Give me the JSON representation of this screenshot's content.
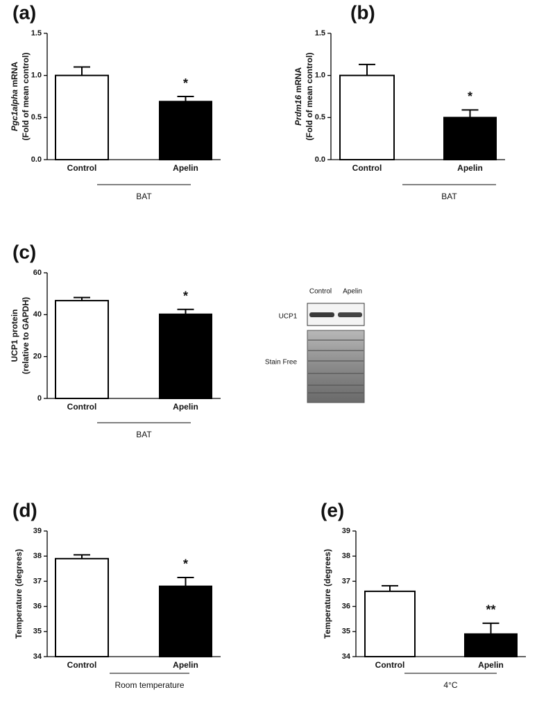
{
  "chart_data": [
    {
      "type": "bar",
      "panel": "(a)",
      "ylabel_italic": "Pgc1alpha",
      "ylabel": [
        " mRNA",
        "(Fold of mean control)"
      ],
      "categories": [
        "Control",
        "Apelin"
      ],
      "values": [
        1.0,
        0.69
      ],
      "errors": [
        0.1,
        0.06
      ],
      "colors": [
        "#ffffff",
        "#000000"
      ],
      "ylim": [
        0,
        1.5
      ],
      "yticks": [
        {
          "value": 0,
          "label": "0.0"
        },
        0.5,
        {
          "value": 1,
          "label": "1.0"
        },
        1.5
      ],
      "sig_label": "*",
      "group_label": "BAT"
    },
    {
      "type": "bar",
      "panel": "(b)",
      "ylabel_italic": "Prdm16",
      "ylabel": [
        " mRNA",
        "(Fold of mean control)"
      ],
      "categories": [
        "Control",
        "Apelin"
      ],
      "values": [
        1.0,
        0.5
      ],
      "errors": [
        0.13,
        0.09
      ],
      "colors": [
        "#ffffff",
        "#000000"
      ],
      "ylim": [
        0,
        1.5
      ],
      "yticks": [
        {
          "value": 0,
          "label": "0.0"
        },
        0.5,
        {
          "value": 1,
          "label": "1.0"
        },
        1.5
      ],
      "sig_label": "*",
      "group_label": "BAT"
    },
    {
      "type": "bar",
      "panel": "(c)",
      "ylabel": [
        "UCP1 protein",
        "(relative to GAPDH)"
      ],
      "categories": [
        "Control",
        "Apelin"
      ],
      "values": [
        46.7,
        40.2
      ],
      "errors": [
        1.5,
        2.3
      ],
      "colors": [
        "#ffffff",
        "#000000"
      ],
      "ylim": [
        0,
        60
      ],
      "yticks": [
        0,
        20,
        40,
        60
      ],
      "sig_label": "*",
      "group_label": "BAT"
    },
    {
      "type": "bar",
      "panel": "(d)",
      "ylabel": [
        "Temperature (degrees)"
      ],
      "categories": [
        "Control",
        "Apelin"
      ],
      "values": [
        37.9,
        36.8
      ],
      "errors": [
        0.15,
        0.35
      ],
      "colors": [
        "#ffffff",
        "#000000"
      ],
      "ylim": [
        34,
        39
      ],
      "yticks": [
        34,
        35,
        36,
        37,
        38,
        39
      ],
      "sig_label": "*",
      "group_label": "Room temperature"
    },
    {
      "type": "bar",
      "panel": "(e)",
      "ylabel": [
        "Temperature (degrees)"
      ],
      "categories": [
        "Control",
        "Apelin"
      ],
      "values": [
        36.6,
        34.9
      ],
      "errors": [
        0.22,
        0.43
      ],
      "colors": [
        "#ffffff",
        "#000000"
      ],
      "ylim": [
        34,
        39
      ],
      "yticks": [
        34,
        35,
        36,
        37,
        38,
        39
      ],
      "sig_label": "**",
      "group_label": "4°C"
    }
  ],
  "blot": {
    "lanes": [
      "Control",
      "Apelin"
    ],
    "rows": [
      "UCP1",
      "Stain Free"
    ]
  }
}
